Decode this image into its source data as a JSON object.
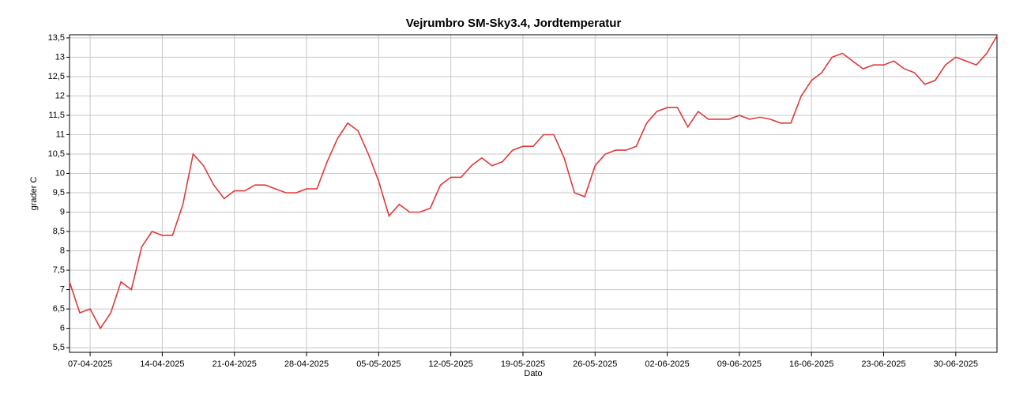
{
  "chart_data": {
    "type": "line",
    "title": "Vejrumbro SM-Sky3.4, Jordtemperatur",
    "xlabel": "Dato",
    "ylabel": "grader C",
    "x": [
      "05-04-2025",
      "06-04-2025",
      "07-04-2025",
      "08-04-2025",
      "09-04-2025",
      "10-04-2025",
      "11-04-2025",
      "12-04-2025",
      "13-04-2025",
      "14-04-2025",
      "15-04-2025",
      "16-04-2025",
      "17-04-2025",
      "18-04-2025",
      "19-04-2025",
      "20-04-2025",
      "21-04-2025",
      "22-04-2025",
      "23-04-2025",
      "24-04-2025",
      "25-04-2025",
      "26-04-2025",
      "27-04-2025",
      "28-04-2025",
      "29-04-2025",
      "30-04-2025",
      "01-05-2025",
      "02-05-2025",
      "03-05-2025",
      "04-05-2025",
      "05-05-2025",
      "06-05-2025",
      "07-05-2025",
      "08-05-2025",
      "09-05-2025",
      "10-05-2025",
      "11-05-2025",
      "12-05-2025",
      "13-05-2025",
      "14-05-2025",
      "15-05-2025",
      "16-05-2025",
      "17-05-2025",
      "18-05-2025",
      "19-05-2025",
      "20-05-2025",
      "21-05-2025",
      "22-05-2025",
      "23-05-2025",
      "24-05-2025",
      "25-05-2025",
      "26-05-2025",
      "27-05-2025",
      "28-05-2025",
      "29-05-2025",
      "30-05-2025",
      "31-05-2025",
      "01-06-2025",
      "02-06-2025",
      "03-06-2025",
      "04-06-2025",
      "05-06-2025",
      "06-06-2025",
      "07-06-2025",
      "08-06-2025",
      "09-06-2025",
      "10-06-2025",
      "11-06-2025",
      "12-06-2025",
      "13-06-2025",
      "14-06-2025",
      "15-06-2025",
      "16-06-2025",
      "17-06-2025",
      "18-06-2025",
      "19-06-2025",
      "20-06-2025",
      "21-06-2025",
      "22-06-2025",
      "23-06-2025",
      "24-06-2025",
      "25-06-2025",
      "26-06-2025",
      "27-06-2025",
      "28-06-2025",
      "29-06-2025",
      "30-06-2025",
      "01-07-2025",
      "02-07-2025",
      "03-07-2025",
      "04-07-2025"
    ],
    "series": [
      {
        "name": "Jordtemperatur",
        "color": "#e03a3a",
        "values": [
          7.2,
          6.4,
          6.5,
          6.0,
          6.4,
          7.2,
          7.0,
          8.1,
          8.5,
          8.4,
          8.4,
          9.2,
          10.5,
          10.2,
          9.7,
          9.35,
          9.55,
          9.55,
          9.7,
          9.7,
          9.6,
          9.5,
          9.5,
          9.6,
          9.6,
          10.3,
          10.9,
          11.3,
          11.1,
          10.5,
          9.8,
          8.9,
          9.2,
          9.0,
          9.0,
          9.1,
          9.7,
          9.9,
          9.9,
          10.2,
          10.4,
          10.2,
          10.3,
          10.6,
          10.7,
          10.7,
          11.0,
          11.0,
          10.4,
          9.5,
          9.4,
          10.2,
          10.5,
          10.6,
          10.6,
          10.7,
          11.3,
          11.6,
          11.7,
          11.7,
          11.2,
          11.6,
          11.4,
          11.4,
          11.4,
          11.5,
          11.4,
          11.45,
          11.4,
          11.3,
          11.3,
          12.0,
          12.4,
          12.6,
          13.0,
          13.1,
          12.9,
          12.7,
          12.8,
          12.8,
          12.9,
          12.7,
          12.6,
          12.3,
          12.4,
          12.8,
          13.0,
          12.9,
          12.8,
          13.1,
          13.55
        ]
      }
    ],
    "xlim": [
      "05-04-2025",
      "04-07-2025"
    ],
    "xticks": [
      "07-04-2025",
      "14-04-2025",
      "21-04-2025",
      "28-04-2025",
      "05-05-2025",
      "12-05-2025",
      "19-05-2025",
      "26-05-2025",
      "02-06-2025",
      "09-06-2025",
      "16-06-2025",
      "23-06-2025",
      "30-06-2025"
    ],
    "ylim": [
      5.38,
      13.58
    ],
    "yticks": [
      {
        "value": 5.5,
        "label": "5,5"
      },
      6,
      {
        "value": 6.5,
        "label": "6,5"
      },
      7,
      {
        "value": 7.5,
        "label": "7,5"
      },
      8,
      {
        "value": 8.5,
        "label": "8,5"
      },
      9,
      {
        "value": 9.5,
        "label": "9,5"
      },
      10,
      {
        "value": 10.5,
        "label": "10,5"
      },
      11,
      {
        "value": 11.5,
        "label": "11,5"
      },
      12,
      {
        "value": 12.5,
        "label": "12,5"
      },
      13,
      {
        "value": 13.5,
        "label": "13,5"
      }
    ],
    "grid": true
  }
}
